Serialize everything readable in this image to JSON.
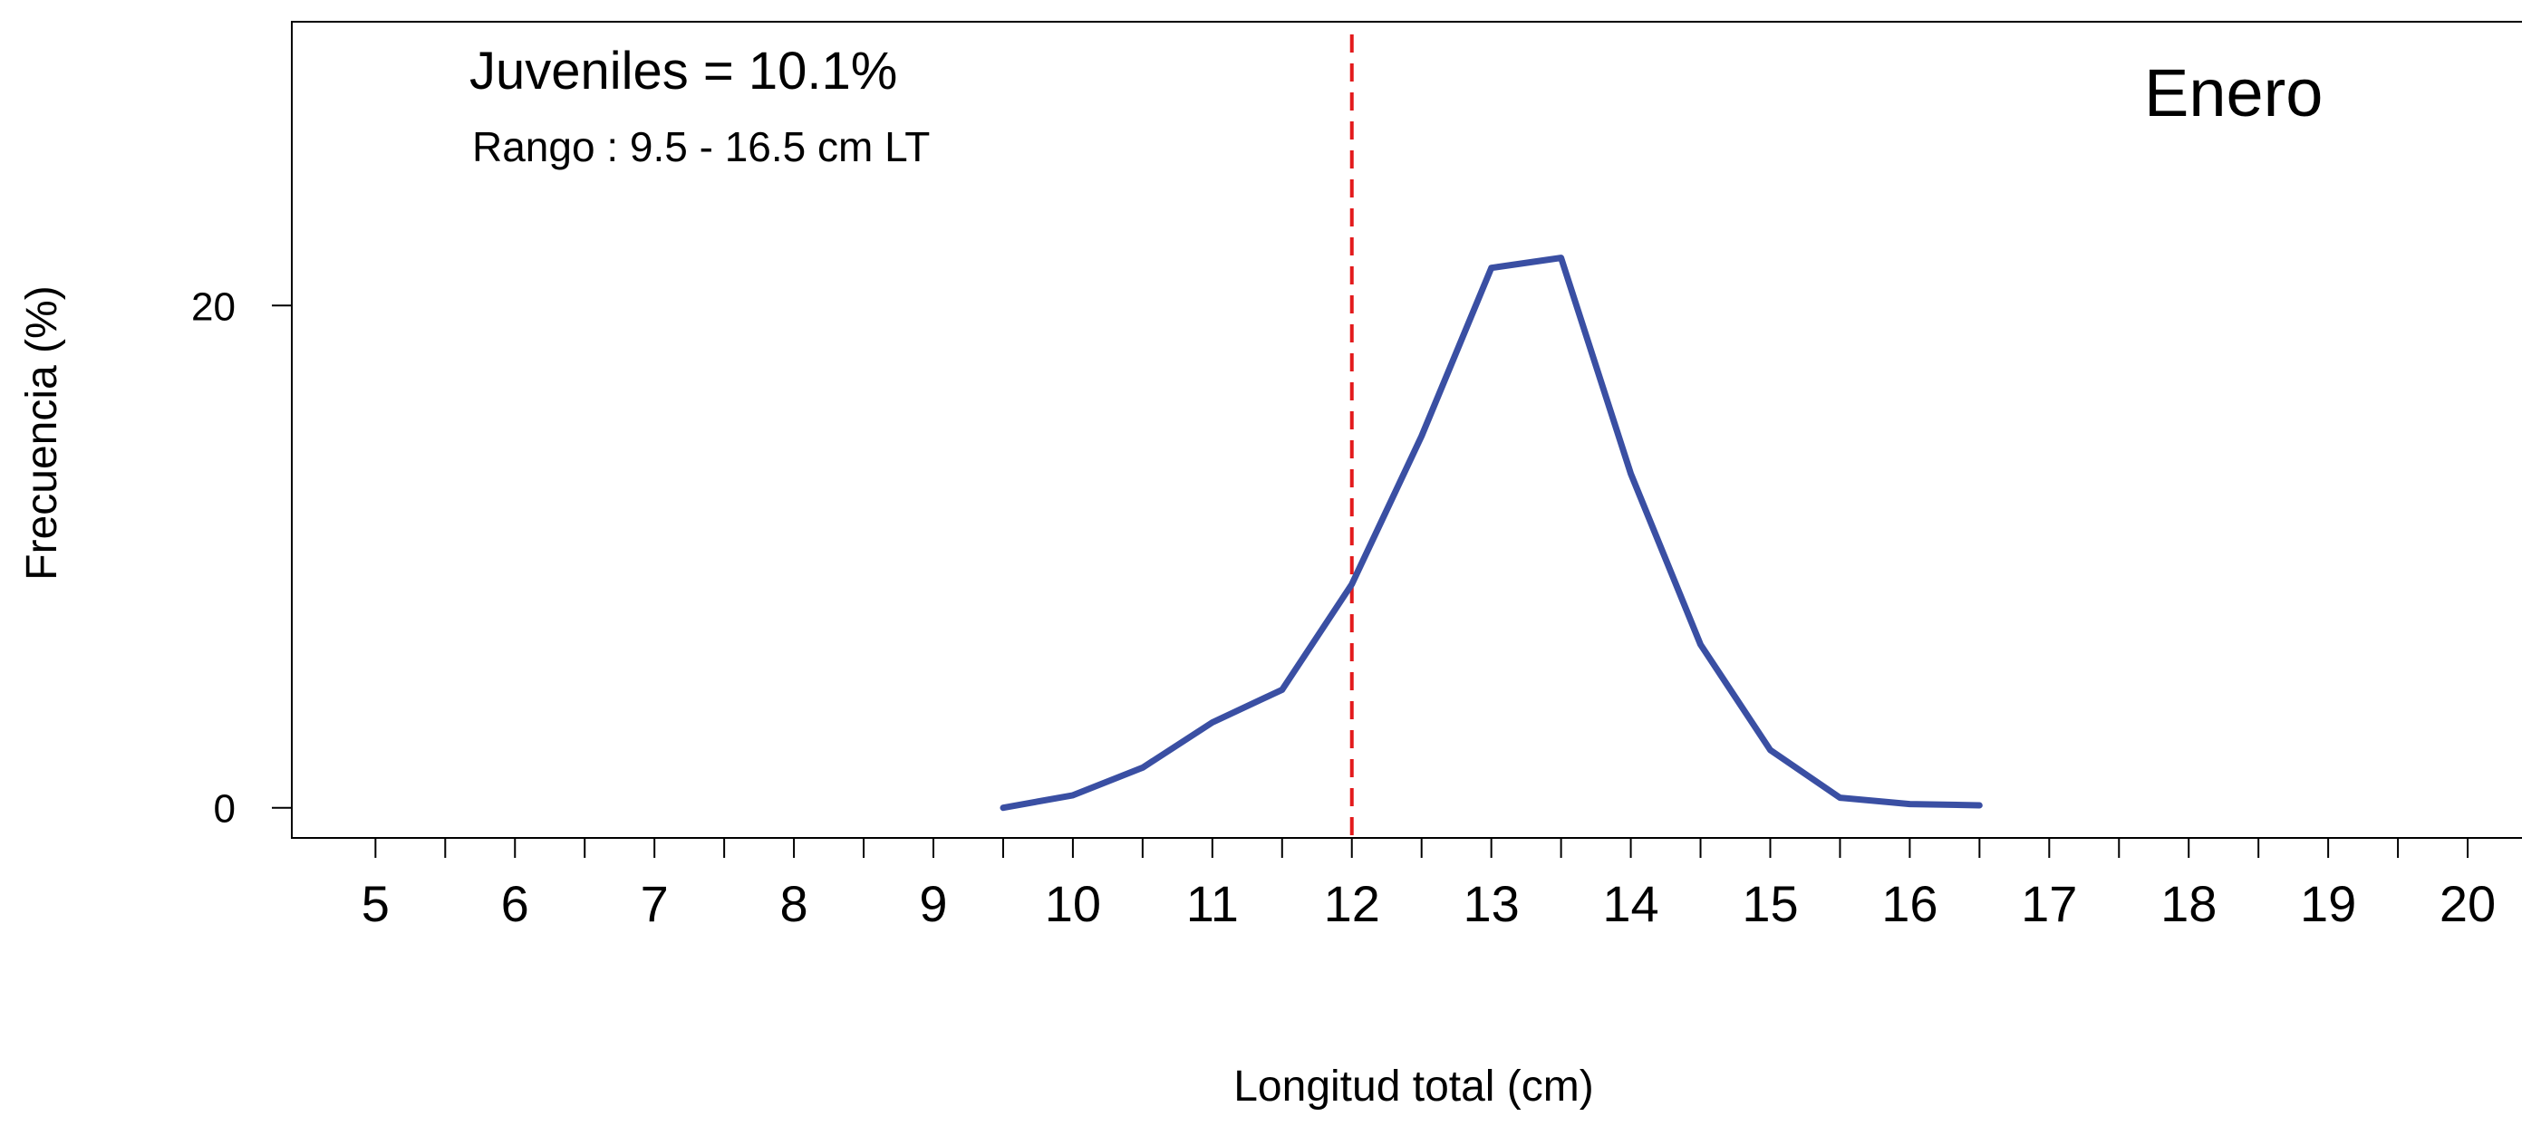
{
  "chart_data": {
    "type": "line",
    "panel_label": "Enero",
    "juveniles_text": "Juveniles = 10.1%",
    "range_text": "Rango : 9.5 - 16.5 cm LT",
    "xlabel": "Longitud total (cm)",
    "ylabel": "Frecuencia (%)",
    "xlim": [
      4.4,
      20.5
    ],
    "ylim": [
      -1.2,
      31.3
    ],
    "x_ticks": [
      5,
      6,
      7,
      8,
      9,
      10,
      11,
      12,
      13,
      14,
      15,
      16,
      17,
      18,
      19,
      20
    ],
    "x_minor_ticks": [
      5.5,
      6.5,
      7.5,
      8.5,
      9.5,
      10.5,
      11.5,
      12.5,
      13.5,
      14.5,
      15.5,
      16.5,
      17.5,
      18.5,
      19.5
    ],
    "y_ticks": [
      0,
      20
    ],
    "reference_line": {
      "x": 12,
      "style": "dashed",
      "color": "#e31a1c"
    },
    "grid": false,
    "series": [
      {
        "color": "#3a4fa3",
        "x": [
          9.5,
          10,
          10.5,
          11,
          11.5,
          12,
          12.5,
          13,
          13.5,
          14,
          14.5,
          15,
          15.5,
          16,
          16.5
        ],
        "values": [
          0.0,
          0.5,
          1.6,
          3.4,
          4.7,
          8.9,
          14.8,
          21.5,
          21.9,
          13.3,
          6.5,
          2.3,
          0.4,
          0.15,
          0.1
        ]
      }
    ]
  }
}
